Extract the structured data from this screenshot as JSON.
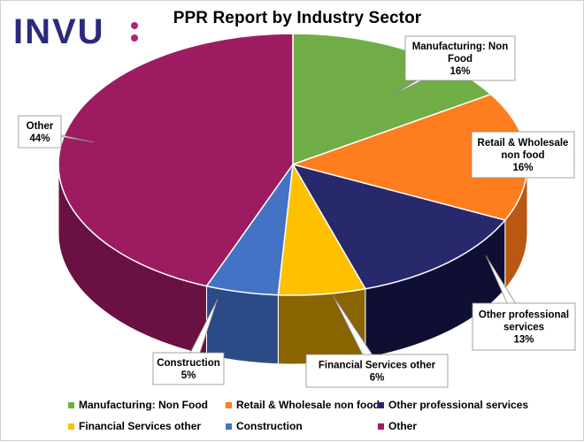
{
  "brand": {
    "logo_text": "INVU:",
    "logo_color": "#2b2a7a",
    "colon_color": "#b3217a"
  },
  "chart_data": {
    "type": "pie",
    "title": "PPR Report by Industry Sector",
    "three_d": true,
    "legend_position": "bottom",
    "categories": [
      "Manufacturing: Non Food",
      "Retail & Wholesale non food",
      "Other professional services",
      "Financial Services other",
      "Construction",
      "Other"
    ],
    "values": [
      16,
      16,
      13,
      6,
      5,
      44
    ],
    "colors": [
      "#70ad47",
      "#fd7d1f",
      "#28286c",
      "#ffc000",
      "#4472c4",
      "#9d1c61"
    ],
    "side_colors": [
      "#4f7a32",
      "#b85812",
      "#0f0f33",
      "#8a6400",
      "#2a4b85",
      "#6a1042"
    ],
    "data_labels": [
      {
        "lines": [
          "Manufacturing:  Non",
          "Food"
        ],
        "pct": "16%"
      },
      {
        "lines": [
          "Retail & Wholesale",
          "non food"
        ],
        "pct": "16%"
      },
      {
        "lines": [
          "Other professional",
          "services"
        ],
        "pct": "13%"
      },
      {
        "lines": [
          "Financial  Services other"
        ],
        "pct": "6%"
      },
      {
        "lines": [
          "Construction"
        ],
        "pct": "5%"
      },
      {
        "lines": [
          "Other"
        ],
        "pct": "44%"
      }
    ]
  }
}
